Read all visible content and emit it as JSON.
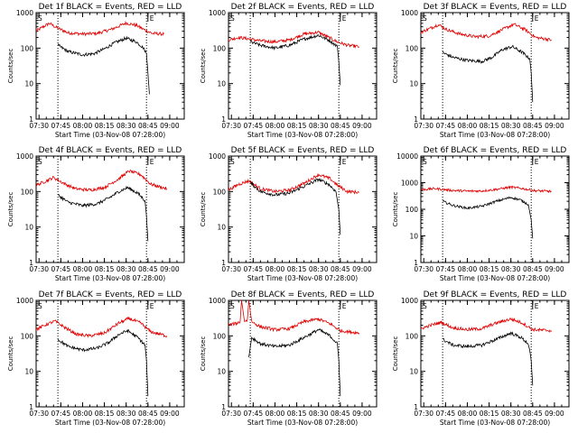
{
  "figure": {
    "background": "#ffffff",
    "event_color": "#000000",
    "lld_color": "#e00000"
  },
  "chart_data": [
    {
      "type": "line",
      "title": "Det 1f BLACK = Events, RED = LLD",
      "xlabel": "Start Time (03-Nov-08 07:28:00)",
      "ylabel": "Counts/sec",
      "x_ticks": [
        "07:30",
        "07:45",
        "08:00",
        "08:15",
        "08:30",
        "08:45",
        "09:00"
      ],
      "y_scale": "log",
      "ylim": [
        1,
        1000
      ],
      "y_ticks": [
        "1",
        "10",
        "100",
        "1000"
      ],
      "markers": [
        {
          "label": "S",
          "time": "07:28"
        },
        {
          "label": "E",
          "time": "08:45"
        }
      ],
      "dotted_lines": [
        "07:43",
        "08:44"
      ],
      "series": [
        {
          "name": "LLD",
          "color": "#e00000",
          "x": [
            "07:28",
            "07:32",
            "07:37",
            "07:42",
            "07:50",
            "08:00",
            "08:10",
            "08:20",
            "08:30",
            "08:37",
            "08:43",
            "08:48",
            "08:56"
          ],
          "y": [
            300,
            380,
            500,
            380,
            270,
            250,
            260,
            340,
            510,
            440,
            320,
            260,
            250
          ]
        },
        {
          "name": "Events",
          "color": "#000000",
          "x": [
            "07:43",
            "07:50",
            "08:00",
            "08:08",
            "08:15",
            "08:22",
            "08:30",
            "08:37",
            "08:42",
            "08:44",
            "08:45",
            "08:46"
          ],
          "y": [
            120,
            80,
            65,
            70,
            95,
            140,
            190,
            150,
            100,
            70,
            20,
            5
          ]
        }
      ]
    },
    {
      "type": "line",
      "title": "Det 2f BLACK = Events, RED = LLD",
      "xlabel": "Start Time (03-Nov-08 07:28:00)",
      "ylabel": "Counts/sec",
      "x_ticks": [
        "07:30",
        "07:45",
        "08:00",
        "08:15",
        "08:30",
        "08:45",
        "09:00"
      ],
      "y_scale": "log",
      "ylim": [
        1,
        1000
      ],
      "y_ticks": [
        "1",
        "10",
        "100",
        "1000"
      ],
      "markers": [
        {
          "label": "S",
          "time": "07:28"
        },
        {
          "label": "E",
          "time": "08:45"
        }
      ],
      "dotted_lines": [
        "07:43",
        "08:44"
      ],
      "series": [
        {
          "name": "LLD",
          "color": "#e00000",
          "x": [
            "07:28",
            "07:35",
            "07:43",
            "07:50",
            "08:00",
            "08:10",
            "08:20",
            "08:30",
            "08:37",
            "08:43",
            "08:50",
            "08:58"
          ],
          "y": [
            170,
            200,
            180,
            160,
            150,
            170,
            250,
            280,
            200,
            150,
            120,
            110
          ]
        },
        {
          "name": "Events",
          "color": "#000000",
          "x": [
            "07:43",
            "07:50",
            "08:00",
            "08:10",
            "08:20",
            "08:30",
            "08:38",
            "08:43",
            "08:44",
            "08:45"
          ],
          "y": [
            150,
            120,
            100,
            120,
            180,
            230,
            160,
            110,
            40,
            9
          ]
        }
      ]
    },
    {
      "type": "line",
      "title": "Det 3f BLACK = Events, RED = LLD",
      "xlabel": "Start Time (03-Nov-08 07:28:00)",
      "ylabel": "Counts/sec",
      "x_ticks": [
        "07:30",
        "07:45",
        "08:00",
        "08:15",
        "08:30",
        "08:45",
        "09:00"
      ],
      "y_scale": "log",
      "ylim": [
        1,
        1000
      ],
      "y_ticks": [
        "1",
        "10",
        "100",
        "1000"
      ],
      "markers": [
        {
          "label": "S",
          "time": "07:28"
        },
        {
          "label": "E",
          "time": "08:45"
        }
      ],
      "dotted_lines": [
        "07:43",
        "08:44"
      ],
      "series": [
        {
          "name": "LLD",
          "color": "#e00000",
          "x": [
            "07:28",
            "07:33",
            "07:40",
            "07:46",
            "07:55",
            "08:05",
            "08:15",
            "08:24",
            "08:32",
            "08:40",
            "08:47",
            "08:58"
          ],
          "y": [
            280,
            340,
            460,
            330,
            250,
            210,
            220,
            330,
            470,
            330,
            200,
            170
          ]
        },
        {
          "name": "Events",
          "color": "#000000",
          "x": [
            "07:43",
            "07:50",
            "08:00",
            "08:10",
            "08:17",
            "08:24",
            "08:31",
            "08:38",
            "08:43",
            "08:44",
            "08:45"
          ],
          "y": [
            75,
            55,
            45,
            42,
            55,
            90,
            110,
            75,
            50,
            20,
            3
          ]
        }
      ]
    },
    {
      "type": "line",
      "title": "Det 4f BLACK = Events, RED = LLD",
      "xlabel": "Start Time (03-Nov-08 07:28:00)",
      "ylabel": "Counts/sec",
      "x_ticks": [
        "07:30",
        "07:45",
        "08:00",
        "08:15",
        "08:30",
        "08:45",
        "09:00"
      ],
      "y_scale": "log",
      "ylim": [
        1,
        1000
      ],
      "y_ticks": [
        "1",
        "10",
        "100",
        "1000"
      ],
      "markers": [
        {
          "label": "S",
          "time": "07:28"
        },
        {
          "label": "E",
          "time": "08:45"
        }
      ],
      "dotted_lines": [
        "07:43",
        "08:44"
      ],
      "series": [
        {
          "name": "LLD",
          "color": "#e00000",
          "x": [
            "07:28",
            "07:35",
            "07:40",
            "07:47",
            "07:55",
            "08:05",
            "08:15",
            "08:25",
            "08:32",
            "08:40",
            "08:47",
            "08:58"
          ],
          "y": [
            150,
            200,
            250,
            170,
            120,
            110,
            130,
            230,
            380,
            300,
            160,
            120
          ]
        },
        {
          "name": "Events",
          "color": "#000000",
          "x": [
            "07:43",
            "07:50",
            "08:00",
            "08:10",
            "08:18",
            "08:25",
            "08:31",
            "08:38",
            "08:43",
            "08:44",
            "08:45"
          ],
          "y": [
            80,
            50,
            40,
            45,
            65,
            100,
            130,
            90,
            55,
            20,
            4
          ]
        }
      ]
    },
    {
      "type": "line",
      "title": "Det 5f BLACK = Events, RED = LLD",
      "xlabel": "Start Time (03-Nov-08 07:28:00)",
      "ylabel": "Counts/sec",
      "x_ticks": [
        "07:30",
        "07:45",
        "08:00",
        "08:15",
        "08:30",
        "08:45",
        "09:00"
      ],
      "y_scale": "log",
      "ylim": [
        1,
        1000
      ],
      "y_ticks": [
        "1",
        "10",
        "100",
        "1000"
      ],
      "markers": [
        {
          "label": "S",
          "time": "07:28"
        },
        {
          "label": "E",
          "time": "08:45"
        }
      ],
      "dotted_lines": [
        "07:43",
        "08:44"
      ],
      "series": [
        {
          "name": "LLD",
          "color": "#e00000",
          "x": [
            "07:28",
            "07:35",
            "07:42",
            "07:50",
            "08:00",
            "08:10",
            "08:20",
            "08:30",
            "08:38",
            "08:43",
            "08:50",
            "08:58"
          ],
          "y": [
            110,
            160,
            200,
            120,
            100,
            110,
            170,
            300,
            230,
            150,
            100,
            95
          ]
        },
        {
          "name": "Events",
          "color": "#000000",
          "x": [
            "07:43",
            "07:50",
            "08:00",
            "08:10",
            "08:20",
            "08:30",
            "08:37",
            "08:42",
            "08:44",
            "08:45"
          ],
          "y": [
            180,
            100,
            80,
            90,
            140,
            220,
            160,
            100,
            30,
            6
          ]
        }
      ]
    },
    {
      "type": "line",
      "title": "Det 6f BLACK = Events, RED = LLD",
      "xlabel": "Start Time (03-Nov-08 07:28:00)",
      "ylabel": "Counts/sec",
      "x_ticks": [
        "07:30",
        "07:45",
        "08:00",
        "08:15",
        "08:30",
        "08:45",
        "09:00"
      ],
      "y_scale": "log",
      "ylim": [
        1,
        10000
      ],
      "y_ticks": [
        "1",
        "10",
        "100",
        "1000",
        "10000"
      ],
      "markers": [
        {
          "label": "S",
          "time": "07:28"
        },
        {
          "label": "E",
          "time": "08:45"
        }
      ],
      "dotted_lines": [
        "07:43",
        "08:44"
      ],
      "series": [
        {
          "name": "LLD",
          "color": "#e00000",
          "x": [
            "07:28",
            "07:38",
            "07:48",
            "08:00",
            "08:10",
            "08:20",
            "08:30",
            "08:38",
            "08:46",
            "08:58"
          ],
          "y": [
            550,
            600,
            520,
            480,
            490,
            560,
            680,
            600,
            500,
            470
          ]
        },
        {
          "name": "Events",
          "color": "#000000",
          "x": [
            "07:43",
            "07:50",
            "08:00",
            "08:10",
            "08:20",
            "08:30",
            "08:37",
            "08:42",
            "08:44",
            "08:45"
          ],
          "y": [
            200,
            140,
            110,
            130,
            200,
            280,
            220,
            150,
            40,
            8
          ]
        }
      ]
    },
    {
      "type": "line",
      "title": "Det 7f BLACK = Events, RED = LLD",
      "xlabel": "Start Time (03-Nov-08 07:28:00)",
      "ylabel": "Counts/sec",
      "x_ticks": [
        "07:30",
        "07:45",
        "08:00",
        "08:15",
        "08:30",
        "08:45",
        "09:00"
      ],
      "y_scale": "log",
      "ylim": [
        1,
        1000
      ],
      "y_ticks": [
        "1",
        "10",
        "100",
        "1000"
      ],
      "markers": [
        {
          "label": "S",
          "time": "07:28"
        },
        {
          "label": "E",
          "time": "08:45"
        }
      ],
      "dotted_lines": [
        "07:43",
        "08:44"
      ],
      "series": [
        {
          "name": "LLD",
          "color": "#e00000",
          "x": [
            "07:28",
            "07:35",
            "07:41",
            "07:48",
            "07:56",
            "08:05",
            "08:15",
            "08:25",
            "08:32",
            "08:40",
            "08:47",
            "08:58"
          ],
          "y": [
            150,
            210,
            260,
            170,
            110,
            100,
            120,
            230,
            310,
            230,
            130,
            100
          ]
        },
        {
          "name": "Events",
          "color": "#000000",
          "x": [
            "07:43",
            "07:50",
            "08:00",
            "08:10",
            "08:18",
            "08:25",
            "08:31",
            "08:38",
            "08:43",
            "08:44",
            "08:45"
          ],
          "y": [
            80,
            50,
            40,
            45,
            65,
            110,
            140,
            90,
            55,
            20,
            2
          ]
        }
      ]
    },
    {
      "type": "line",
      "title": "Det 8f BLACK = Events, RED = LLD",
      "xlabel": "Start Time (03-Nov-08 07:28:00)",
      "ylabel": "Counts/sec",
      "x_ticks": [
        "07:30",
        "07:45",
        "08:00",
        "08:15",
        "08:30",
        "08:45",
        "09:00"
      ],
      "y_scale": "log",
      "ylim": [
        1,
        1000
      ],
      "y_ticks": [
        "1",
        "10",
        "100",
        "1000"
      ],
      "markers": [
        {
          "label": "S",
          "time": "07:28"
        },
        {
          "label": "E",
          "time": "08:45"
        }
      ],
      "dotted_lines": [
        "07:43",
        "08:44"
      ],
      "series": [
        {
          "name": "LLD",
          "color": "#e00000",
          "x": [
            "07:28",
            "07:34",
            "07:36",
            "07:37",
            "07:39",
            "07:41",
            "07:42",
            "07:44",
            "07:50",
            "08:00",
            "08:10",
            "08:20",
            "08:30",
            "08:38",
            "08:45",
            "08:58"
          ],
          "y": [
            200,
            230,
            250,
            1000,
            260,
            280,
            1000,
            250,
            180,
            150,
            160,
            250,
            300,
            220,
            140,
            120
          ]
        },
        {
          "name": "Events",
          "color": "#000000",
          "x": [
            "07:42",
            "07:44",
            "07:50",
            "08:00",
            "08:10",
            "08:20",
            "08:30",
            "08:38",
            "08:43",
            "08:44",
            "08:45"
          ],
          "y": [
            25,
            90,
            60,
            50,
            55,
            90,
            150,
            100,
            60,
            20,
            2
          ]
        }
      ]
    },
    {
      "type": "line",
      "title": "Det 9f BLACK = Events, RED = LLD",
      "xlabel": "Start Time (03-Nov-08 07:28:00)",
      "ylabel": "Counts/sec",
      "x_ticks": [
        "07:30",
        "07:45",
        "08:00",
        "08:15",
        "08:30",
        "08:45",
        "09:00"
      ],
      "y_scale": "log",
      "ylim": [
        1,
        1000
      ],
      "y_ticks": [
        "1",
        "10",
        "100",
        "1000"
      ],
      "markers": [
        {
          "label": "S",
          "time": "07:28"
        },
        {
          "label": "E",
          "time": "08:45"
        }
      ],
      "dotted_lines": [
        "07:43",
        "08:44"
      ],
      "series": [
        {
          "name": "LLD",
          "color": "#e00000",
          "x": [
            "07:28",
            "07:35",
            "07:42",
            "07:50",
            "08:00",
            "08:10",
            "08:20",
            "08:30",
            "08:38",
            "08:45",
            "08:58"
          ],
          "y": [
            160,
            200,
            240,
            170,
            150,
            160,
            230,
            300,
            230,
            150,
            140
          ]
        },
        {
          "name": "Events",
          "color": "#000000",
          "x": [
            "07:43",
            "07:50",
            "08:00",
            "08:10",
            "08:20",
            "08:30",
            "08:37",
            "08:42",
            "08:44",
            "08:45"
          ],
          "y": [
            80,
            55,
            50,
            55,
            80,
            120,
            90,
            60,
            20,
            4
          ]
        }
      ]
    }
  ]
}
